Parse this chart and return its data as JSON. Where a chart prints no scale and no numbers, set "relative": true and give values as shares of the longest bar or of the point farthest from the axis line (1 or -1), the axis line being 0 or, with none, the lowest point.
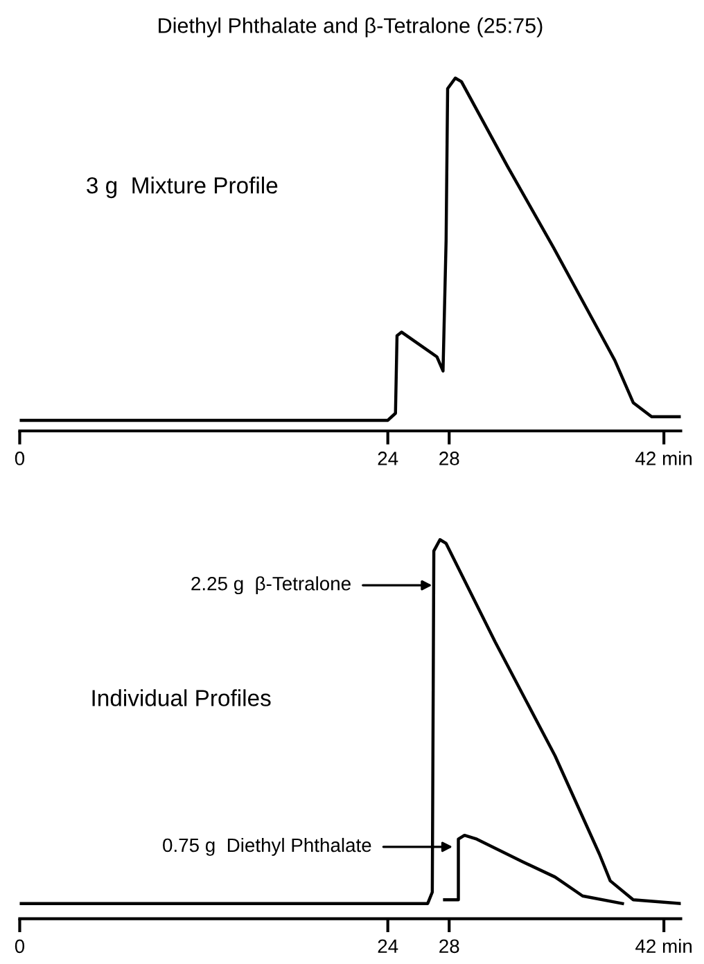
{
  "chart_data": [
    {
      "type": "line",
      "title": "Diethyl Phthalate and β-Tetralone (25:75)",
      "relative": true,
      "xlim": [
        0,
        43.1
      ],
      "xticks": [
        0,
        24,
        28,
        {
          "value": 42,
          "label": "42 min"
        }
      ],
      "tick_labels": "x",
      "grid": false,
      "legend": false,
      "annotations": [
        "3 g  Mixture Profile"
      ],
      "series": [
        {
          "color": "#000000",
          "x": [
            0,
            24.0,
            24.5,
            24.6,
            24.9,
            27.2,
            27.6,
            27.8,
            27.9,
            28.4,
            28.8,
            31.8,
            34.8,
            37.8,
            38.8,
            40.0,
            41.2,
            43.1
          ],
          "values": [
            0.03,
            0.03,
            0.05,
            0.27,
            0.28,
            0.21,
            0.17,
            0.54,
            0.97,
            1.0,
            0.99,
            0.75,
            0.52,
            0.28,
            0.2,
            0.08,
            0.04,
            0.04
          ]
        }
      ]
    },
    {
      "type": "line",
      "relative": true,
      "xlim": [
        0,
        43.1
      ],
      "xticks": [
        0,
        24,
        28,
        {
          "value": 42,
          "label": "42 min"
        }
      ],
      "tick_labels": "x",
      "grid": false,
      "legend": false,
      "annotations": [
        "Individual Profiles",
        "2.25 g  β-Tetralone",
        "0.75 g  Diethyl Phthalate"
      ],
      "series": [
        {
          "color": "#000000",
          "x": [
            0,
            26.6,
            26.9,
            27.0,
            27.4,
            27.8,
            31.0,
            34.9,
            37.8,
            38.5,
            40.0,
            43.1
          ],
          "values": [
            0.04,
            0.04,
            0.07,
            0.97,
            1.0,
            0.99,
            0.73,
            0.43,
            0.17,
            0.1,
            0.05,
            0.04
          ]
        },
        {
          "color": "#000000",
          "x": [
            27.7,
            28.6,
            28.6,
            29.0,
            29.8,
            32.8,
            34.9,
            36.7,
            39.3
          ],
          "values": [
            0.05,
            0.05,
            0.21,
            0.22,
            0.21,
            0.15,
            0.11,
            0.06,
            0.04
          ]
        }
      ]
    }
  ]
}
